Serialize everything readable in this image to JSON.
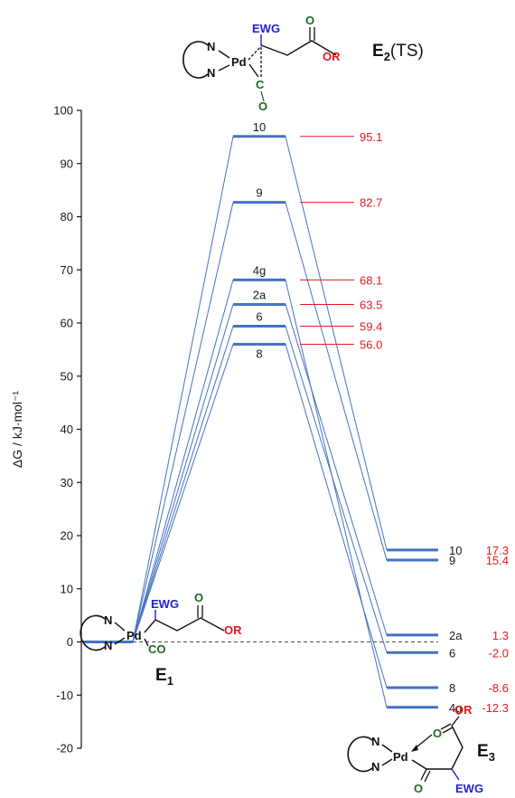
{
  "chart_data": {
    "type": "energy_profile",
    "ylabel": "ΔG / kJ·mol⁻¹",
    "ylim": [
      -20,
      100
    ],
    "yticks": [
      -20,
      -10,
      0,
      10,
      20,
      30,
      40,
      50,
      60,
      70,
      80,
      90,
      100
    ],
    "grid": false,
    "stages": [
      "E1",
      "E2(TS)",
      "E3"
    ],
    "reference_energy": 0,
    "series": [
      {
        "name": "10",
        "ts": 95.1,
        "ts_label": "95.1",
        "product": 17.3,
        "product_label": "17.3"
      },
      {
        "name": "9",
        "ts": 82.7,
        "ts_label": "82.7",
        "product": 15.4,
        "product_label": "15.4"
      },
      {
        "name": "4g",
        "ts": 68.1,
        "ts_label": "68.1",
        "product": -12.3,
        "product_label": "-12.3"
      },
      {
        "name": "2a",
        "ts": 63.5,
        "ts_label": "63.5",
        "product": 1.3,
        "product_label": "1.3"
      },
      {
        "name": "6",
        "ts": 59.4,
        "ts_label": "59.4",
        "product": -2.0,
        "product_label": "-2.0"
      },
      {
        "name": "8",
        "ts": 56.0,
        "ts_label": "56.0",
        "product": -8.6,
        "product_label": "-8.6"
      }
    ],
    "colors": {
      "level": "#4472c4",
      "connector": "#4472c4",
      "value": "#e31a1c",
      "ewg": "#1f1fd6",
      "co": "#1e6b1e",
      "or": "#e31a1c"
    }
  },
  "structures": {
    "e1": {
      "label_main": "E",
      "label_sub": "1",
      "n_top": "N",
      "n_bottom": "N",
      "pd": "Pd",
      "ewg": "EWG",
      "co": "CO",
      "o": "O",
      "or": "OR"
    },
    "e2": {
      "label_main": "E",
      "label_sub": "2",
      "label_suffix": "(TS)",
      "n_top": "N",
      "n_bottom": "N",
      "pd": "Pd",
      "ewg": "EWG",
      "c": "C",
      "o_ts": "O",
      "o": "O",
      "or": "OR"
    },
    "e3": {
      "label_main": "E",
      "label_sub": "3",
      "n_top": "N",
      "n_bottom": "N",
      "pd": "Pd",
      "or": "OR",
      "o_ester": "O",
      "o_acyl": "O",
      "ewg": "EWG"
    }
  }
}
